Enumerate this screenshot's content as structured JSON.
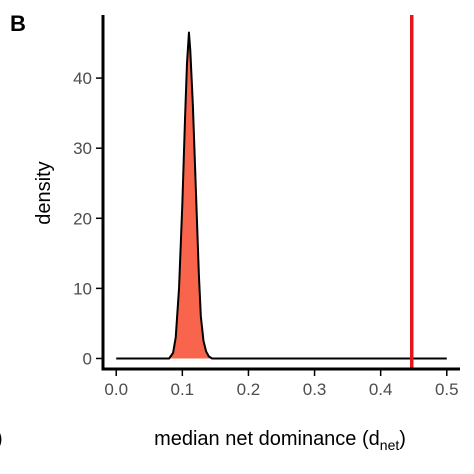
{
  "panel_label": "B",
  "left_edge_fragment": ")",
  "chart_data": {
    "type": "area",
    "title": "",
    "xlabel": "median net dominance (d",
    "xlabel_subscript": "net",
    "xlabel_close": ")",
    "ylabel": "density",
    "xlim": [
      -0.02,
      0.52
    ],
    "ylim": [
      -1.5,
      49
    ],
    "x_ticks": [
      0.0,
      0.1,
      0.2,
      0.3,
      0.4,
      0.5
    ],
    "x_tick_labels": [
      "0.0",
      "0.1",
      "0.2",
      "0.3",
      "0.4",
      "0.5"
    ],
    "y_ticks": [
      0,
      10,
      20,
      30,
      40
    ],
    "y_tick_labels": [
      "0",
      "10",
      "20",
      "30",
      "40"
    ],
    "density_curve": {
      "x": [
        0.0,
        0.08,
        0.086,
        0.09,
        0.095,
        0.1,
        0.104,
        0.107,
        0.11,
        0.112,
        0.114,
        0.116,
        0.119,
        0.122,
        0.125,
        0.128,
        0.132,
        0.136,
        0.14,
        0.145,
        0.5
      ],
      "y": [
        0,
        0,
        0.8,
        3,
        10,
        22,
        34,
        42,
        46.5,
        44,
        40,
        36,
        28,
        20,
        12,
        6,
        2.5,
        1,
        0.3,
        0,
        0
      ],
      "fill_color": "#f8654c",
      "line_color": "#000000"
    },
    "reference_line": {
      "x": 0.447,
      "color": "#e4161c"
    }
  }
}
